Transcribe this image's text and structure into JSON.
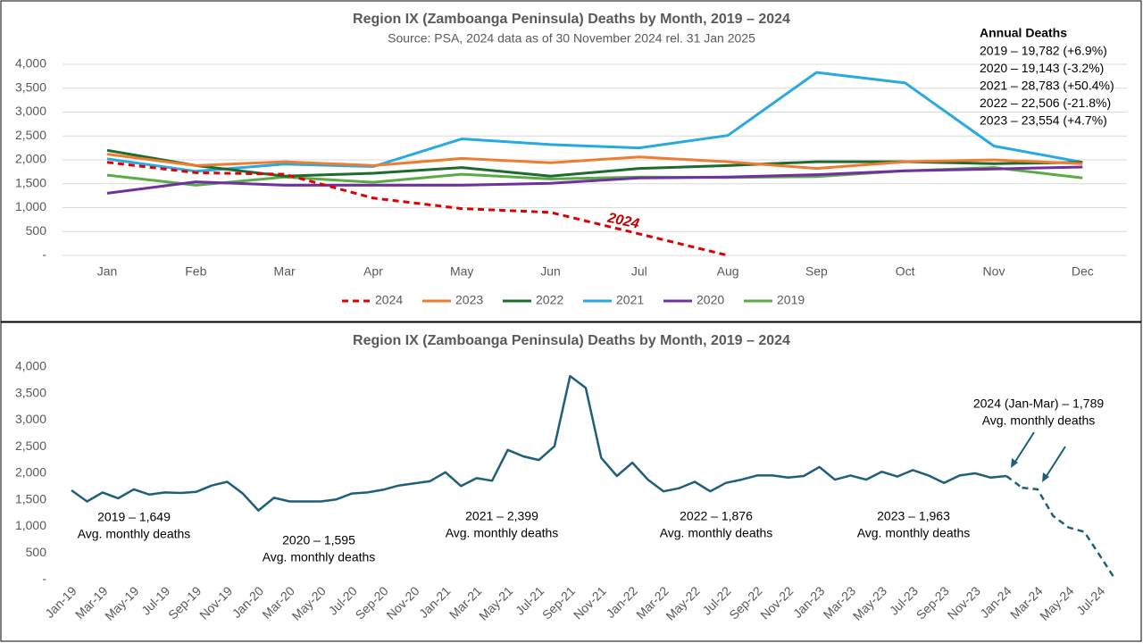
{
  "chart_data": [
    {
      "type": "line",
      "title": "Region IX (Zamboanga Peninsula) Deaths by Month, 2019 – 2024",
      "subtitle": "Source: PSA, 2024 data as of 30 November 2024 rel. 31 Jan 2025",
      "categories": [
        "Jan",
        "Feb",
        "Mar",
        "Apr",
        "May",
        "Jun",
        "Jul",
        "Aug",
        "Sep",
        "Oct",
        "Nov",
        "Dec"
      ],
      "ylim": [
        0,
        4000
      ],
      "yticks": [
        {
          "value": 0,
          "label": "-"
        },
        500,
        {
          "value": 1000,
          "label": "1,000"
        },
        {
          "value": 1500,
          "label": "1,500"
        },
        {
          "value": 2000,
          "label": "2,000"
        },
        {
          "value": 2500,
          "label": "2,500"
        },
        {
          "value": 3000,
          "label": "3,000"
        },
        {
          "value": 3500,
          "label": "3,500"
        },
        {
          "value": 4000,
          "label": "4,000"
        }
      ],
      "grid": true,
      "legend": "bottom",
      "series": [
        {
          "name": "2024",
          "color": "#e00000",
          "dash": true,
          "values": [
            1950,
            1730,
            1700,
            1200,
            980,
            900,
            450,
            0,
            null,
            null,
            null,
            null
          ]
        },
        {
          "name": "2023",
          "color": "#ed7d31",
          "values": [
            2120,
            1880,
            1960,
            1880,
            2030,
            1940,
            2060,
            1960,
            1820,
            1960,
            2000,
            1920
          ]
        },
        {
          "name": "2022",
          "color": "#1e6b2e",
          "values": [
            2200,
            1880,
            1660,
            1720,
            1840,
            1660,
            1820,
            1880,
            1960,
            1960,
            1920,
            1950
          ]
        },
        {
          "name": "2021",
          "color": "#27a9e1",
          "values": [
            2020,
            1760,
            1910,
            1860,
            2440,
            2320,
            2250,
            2510,
            3830,
            3610,
            2290,
            1950
          ]
        },
        {
          "name": "2020",
          "color": "#7030a0",
          "values": [
            1300,
            1540,
            1470,
            1470,
            1470,
            1510,
            1620,
            1640,
            1690,
            1770,
            1810,
            1850
          ]
        },
        {
          "name": "2019",
          "color": "#5aab46",
          "values": [
            1680,
            1470,
            1640,
            1530,
            1700,
            1600,
            1640,
            1630,
            1650,
            1770,
            1840,
            1620
          ]
        }
      ],
      "annotations": [
        "2024"
      ],
      "annual_box": {
        "title": "Annual Deaths",
        "lines": [
          "2019 – 19,782 (+6.9%)",
          "2020 – 19,143 (-3.2%)",
          "2021 – 28,783 (+50.4%)",
          "2022 – 22,506 (-21.8%)",
          "2023 – 23,554 (+4.7%)"
        ]
      }
    },
    {
      "type": "line",
      "title": "Region IX (Zamboanga Peninsula) Deaths by Month, 2019 – 2024",
      "categories": [
        "Jan-19",
        null,
        "Mar-19",
        null,
        "May-19",
        null,
        "Jul-19",
        null,
        "Sep-19",
        null,
        "Nov-19",
        null,
        "Jan-20",
        null,
        "Mar-20",
        null,
        "May-20",
        null,
        "Jul-20",
        null,
        "Sep-20",
        null,
        "Nov-20",
        null,
        "Jan-21",
        null,
        "Mar-21",
        null,
        "May-21",
        null,
        "Jul-21",
        null,
        "Sep-21",
        null,
        "Nov-21",
        null,
        "Jan-22",
        null,
        "Mar-22",
        null,
        "May-22",
        null,
        "Jul-22",
        null,
        "Sep-22",
        null,
        "Nov-22",
        null,
        "Jan-23",
        null,
        "Mar-23",
        null,
        "May-23",
        null,
        "Jul-23",
        null,
        "Sep-23",
        null,
        "Nov-23",
        null,
        "Jan-24",
        null,
        "Mar-24",
        null,
        "May-24",
        null,
        "Jul-24",
        null
      ],
      "ylim": [
        0,
        4000
      ],
      "yticks": [
        {
          "value": 0,
          "label": "-"
        },
        500,
        {
          "value": 1000,
          "label": "1,000"
        },
        {
          "value": 1500,
          "label": "1,500"
        },
        {
          "value": 2000,
          "label": "2,000"
        },
        {
          "value": 2500,
          "label": "2,500"
        },
        {
          "value": 3000,
          "label": "3,000"
        },
        {
          "value": 3500,
          "label": "3,500"
        },
        {
          "value": 4000,
          "label": "4,000"
        }
      ],
      "grid": false,
      "series": [
        {
          "color": "#1f5f7a",
          "values": [
            1680,
            1470,
            1640,
            1530,
            1700,
            1600,
            1640,
            1630,
            1650,
            1770,
            1840,
            1620,
            1300,
            1540,
            1470,
            1470,
            1470,
            1510,
            1620,
            1640,
            1690,
            1770,
            1810,
            1850,
            2020,
            1760,
            1910,
            1860,
            2440,
            2320,
            2250,
            2510,
            3830,
            3610,
            2290,
            1950,
            2200,
            1880,
            1660,
            1720,
            1840,
            1660,
            1820,
            1880,
            1960,
            1960,
            1920,
            1950,
            2120,
            1880,
            1960,
            1880,
            2030,
            1940,
            2060,
            1960,
            1820,
            1960,
            2000,
            1920,
            1950,
            null,
            null,
            null,
            null,
            null,
            null,
            null
          ]
        },
        {
          "color": "#1f5f7a",
          "dash": true,
          "values": [
            null,
            null,
            null,
            null,
            null,
            null,
            null,
            null,
            null,
            null,
            null,
            null,
            null,
            null,
            null,
            null,
            null,
            null,
            null,
            null,
            null,
            null,
            null,
            null,
            null,
            null,
            null,
            null,
            null,
            null,
            null,
            null,
            null,
            null,
            null,
            null,
            null,
            null,
            null,
            null,
            null,
            null,
            null,
            null,
            null,
            null,
            null,
            null,
            null,
            null,
            null,
            null,
            null,
            null,
            null,
            null,
            null,
            null,
            null,
            null,
            null,
            1730,
            1700,
            1200,
            980,
            900,
            450,
            0
          ]
        }
      ],
      "annotations": [
        [
          "2019 – 1,649",
          "Avg. monthly deaths"
        ],
        [
          "2020 – 1,595",
          "Avg. monthly deaths"
        ],
        [
          "2021 – 2,399",
          "Avg. monthly deaths"
        ],
        [
          "2022 – 1,876",
          "Avg. monthly deaths"
        ],
        [
          "2023 – 1,963",
          "Avg. monthly deaths"
        ],
        [
          "2024 (Jan-Mar) – 1,789",
          "Avg. monthly deaths"
        ]
      ]
    }
  ]
}
